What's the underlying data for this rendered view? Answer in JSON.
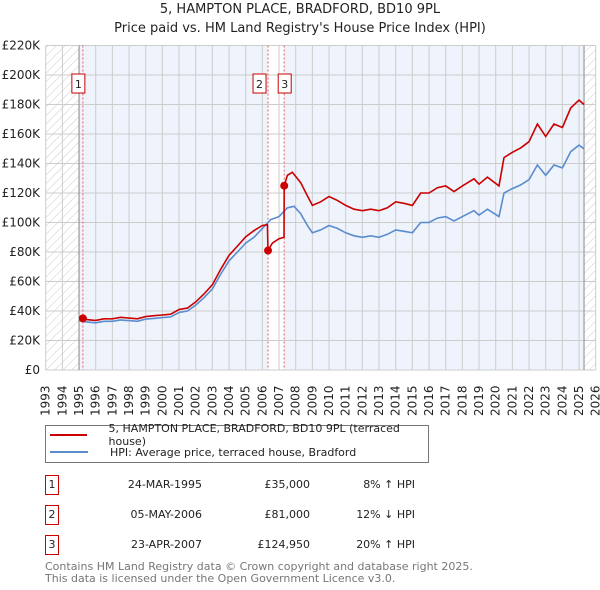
{
  "chart_data": {
    "type": "line",
    "title": "5, HAMPTON PLACE, BRADFORD, BD10 9PL",
    "subtitle": "Price paid vs. HM Land Registry's House Price Index (HPI)",
    "xlim": [
      1993,
      2026
    ],
    "ylim": [
      0,
      220000
    ],
    "x_ticks": [
      "1993",
      "1994",
      "1995",
      "1996",
      "1997",
      "1998",
      "1999",
      "2000",
      "2001",
      "2002",
      "2003",
      "2004",
      "2005",
      "2006",
      "2007",
      "2008",
      "2009",
      "2010",
      "2011",
      "2012",
      "2013",
      "2014",
      "2015",
      "2016",
      "2017",
      "2018",
      "2019",
      "2020",
      "2021",
      "2022",
      "2023",
      "2024",
      "2025",
      "2026"
    ],
    "y_ticks": [
      {
        "v": 0,
        "label": "£0"
      },
      {
        "v": 20000,
        "label": "£20K"
      },
      {
        "v": 40000,
        "label": "£40K"
      },
      {
        "v": 60000,
        "label": "£60K"
      },
      {
        "v": 80000,
        "label": "£80K"
      },
      {
        "v": 100000,
        "label": "£100K"
      },
      {
        "v": 120000,
        "label": "£120K"
      },
      {
        "v": 140000,
        "label": "£140K"
      },
      {
        "v": 160000,
        "label": "£160K"
      },
      {
        "v": 180000,
        "label": "£180K"
      },
      {
        "v": 200000,
        "label": "£200K"
      },
      {
        "v": 220000,
        "label": "£220K"
      }
    ],
    "grid": true,
    "hatched_ranges": [
      [
        1993,
        1995
      ],
      [
        2025.3,
        2026
      ]
    ],
    "colors": {
      "property": "#cc0000",
      "hpi": "#5b8ccf",
      "background": "#eef3fc"
    },
    "series": [
      {
        "name": "5, HAMPTON PLACE, BRADFORD, BD10 9PL (terraced house)",
        "color": "#cc0000",
        "points": [
          [
            1995.23,
            35000
          ],
          [
            1995.5,
            34100
          ],
          [
            1996,
            33600
          ],
          [
            1996.5,
            34700
          ],
          [
            1997,
            34700
          ],
          [
            1997.5,
            35700
          ],
          [
            1998,
            35200
          ],
          [
            1998.5,
            34700
          ],
          [
            1999,
            36200
          ],
          [
            1999.5,
            36800
          ],
          [
            2000,
            37300
          ],
          [
            2000.5,
            37800
          ],
          [
            2001,
            41000
          ],
          [
            2001.5,
            42000
          ],
          [
            2002,
            46200
          ],
          [
            2002.5,
            51500
          ],
          [
            2003,
            57800
          ],
          [
            2003.5,
            68300
          ],
          [
            2004,
            77700
          ],
          [
            2004.5,
            84000
          ],
          [
            2005,
            90300
          ],
          [
            2005.5,
            94500
          ],
          [
            2006,
            98000
          ],
          [
            2006.3,
            98500
          ],
          [
            2006.34,
            81000
          ],
          [
            2006.6,
            86000
          ],
          [
            2007,
            89000
          ],
          [
            2007.3,
            90000
          ],
          [
            2007.31,
            124950
          ],
          [
            2007.5,
            132000
          ],
          [
            2007.8,
            134000
          ],
          [
            2008.3,
            127000
          ],
          [
            2008.7,
            118000
          ],
          [
            2009,
            111600
          ],
          [
            2009.5,
            114000
          ],
          [
            2010,
            117600
          ],
          [
            2010.5,
            115000
          ],
          [
            2011,
            111600
          ],
          [
            2011.5,
            109000
          ],
          [
            2012,
            108000
          ],
          [
            2012.5,
            109000
          ],
          [
            2013,
            108000
          ],
          [
            2013.5,
            110000
          ],
          [
            2014,
            114000
          ],
          [
            2014.5,
            113000
          ],
          [
            2015,
            111600
          ],
          [
            2015.5,
            120000
          ],
          [
            2016,
            120000
          ],
          [
            2016.5,
            123600
          ],
          [
            2017,
            124800
          ],
          [
            2017.5,
            121000
          ],
          [
            2018,
            124800
          ],
          [
            2018.7,
            129600
          ],
          [
            2019,
            126000
          ],
          [
            2019.5,
            130800
          ],
          [
            2020.2,
            124800
          ],
          [
            2020.5,
            144000
          ],
          [
            2021,
            147600
          ],
          [
            2021.5,
            150600
          ],
          [
            2022,
            154800
          ],
          [
            2022.5,
            166800
          ],
          [
            2023,
            158400
          ],
          [
            2023.5,
            166800
          ],
          [
            2024,
            164400
          ],
          [
            2024.5,
            177600
          ],
          [
            2025,
            183000
          ],
          [
            2025.3,
            180000
          ]
        ]
      },
      {
        "name": "HPI: Average price, terraced house, Bradford",
        "color": "#5b8ccf",
        "points": [
          [
            1995,
            33500
          ],
          [
            1995.5,
            32500
          ],
          [
            1996,
            32000
          ],
          [
            1996.5,
            33000
          ],
          [
            1997,
            33000
          ],
          [
            1997.5,
            34000
          ],
          [
            1998,
            33500
          ],
          [
            1998.5,
            33000
          ],
          [
            1999,
            34500
          ],
          [
            1999.5,
            35000
          ],
          [
            2000,
            35500
          ],
          [
            2000.5,
            36000
          ],
          [
            2001,
            39000
          ],
          [
            2001.5,
            40000
          ],
          [
            2002,
            44000
          ],
          [
            2002.5,
            49000
          ],
          [
            2003,
            55000
          ],
          [
            2003.5,
            65000
          ],
          [
            2004,
            74000
          ],
          [
            2004.5,
            80000
          ],
          [
            2005,
            86000
          ],
          [
            2005.5,
            90000
          ],
          [
            2006,
            96000
          ],
          [
            2006.5,
            102000
          ],
          [
            2007,
            104000
          ],
          [
            2007.5,
            110000
          ],
          [
            2007.9,
            111000
          ],
          [
            2008.3,
            106000
          ],
          [
            2008.7,
            98000
          ],
          [
            2009,
            93000
          ],
          [
            2009.5,
            95000
          ],
          [
            2010,
            98000
          ],
          [
            2010.5,
            96000
          ],
          [
            2011,
            93000
          ],
          [
            2011.5,
            91000
          ],
          [
            2012,
            90000
          ],
          [
            2012.5,
            91000
          ],
          [
            2013,
            90000
          ],
          [
            2013.5,
            92000
          ],
          [
            2014,
            95000
          ],
          [
            2014.5,
            94000
          ],
          [
            2015,
            93000
          ],
          [
            2015.5,
            100000
          ],
          [
            2016,
            100000
          ],
          [
            2016.5,
            103000
          ],
          [
            2017,
            104000
          ],
          [
            2017.5,
            101000
          ],
          [
            2018,
            104000
          ],
          [
            2018.7,
            108000
          ],
          [
            2019,
            105000
          ],
          [
            2019.5,
            109000
          ],
          [
            2020.2,
            104000
          ],
          [
            2020.5,
            120000
          ],
          [
            2021,
            123000
          ],
          [
            2021.5,
            125500
          ],
          [
            2022,
            129000
          ],
          [
            2022.5,
            139000
          ],
          [
            2023,
            132000
          ],
          [
            2023.5,
            139000
          ],
          [
            2024,
            137000
          ],
          [
            2024.5,
            148000
          ],
          [
            2025,
            152500
          ],
          [
            2025.3,
            150000
          ]
        ]
      }
    ],
    "sales": [
      {
        "id": "1",
        "x": 1995.23,
        "price": 35000
      },
      {
        "id": "2",
        "x": 2006.34,
        "price": 81000
      },
      {
        "id": "3",
        "x": 2007.31,
        "price": 124950
      }
    ]
  },
  "legend": {
    "property": "5, HAMPTON PLACE, BRADFORD, BD10 9PL (terraced house)",
    "hpi": "HPI: Average price, terraced house, Bradford"
  },
  "sales_table": [
    {
      "id": "1",
      "date": "24-MAR-1995",
      "price": "£35,000",
      "hpi": "8% ↑ HPI"
    },
    {
      "id": "2",
      "date": "05-MAY-2006",
      "price": "£81,000",
      "hpi": "12% ↓ HPI"
    },
    {
      "id": "3",
      "date": "23-APR-2007",
      "price": "£124,950",
      "hpi": "20% ↑ HPI"
    }
  ],
  "footer": {
    "line1": "Contains HM Land Registry data © Crown copyright and database right 2025.",
    "line2": "This data is licensed under the Open Government Licence v3.0."
  }
}
